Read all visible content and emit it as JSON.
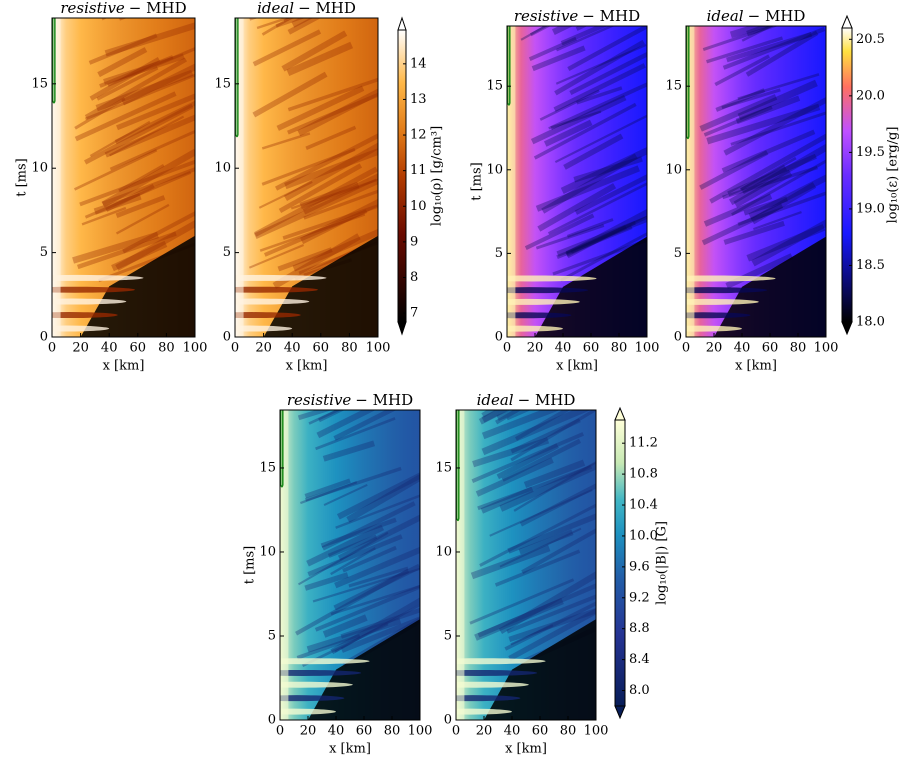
{
  "chart_data": [
    {
      "type": "heatmap",
      "title_italic": "resistive",
      "title": "− MHD",
      "xlabel": "x [km]",
      "ylabel": "t [ms]",
      "xlim": [
        0,
        100
      ],
      "xticks": [
        0,
        20,
        40,
        60,
        80,
        100
      ],
      "ylim": [
        0,
        18.9
      ],
      "yticks": [
        0,
        5,
        10,
        15
      ],
      "colormap": "afmhot",
      "contour_t": 14
    },
    {
      "type": "heatmap",
      "title_italic": "ideal",
      "title": "− MHD",
      "xlabel": "x [km]",
      "xlim": [
        0,
        100
      ],
      "xticks": [
        0,
        20,
        40,
        60,
        80,
        100
      ],
      "ylim": [
        0,
        18.9
      ],
      "yticks": [
        0,
        5,
        10,
        15
      ],
      "colormap": "afmhot",
      "contour_t": 12
    },
    {
      "type": "colorbar",
      "label": "log₁₀(ρ) [g/cm³]",
      "colormap": "afmhot",
      "lim": [
        6.75,
        14.95
      ],
      "ticks": [
        7,
        8,
        9,
        10,
        11,
        12,
        13,
        14
      ]
    },
    {
      "type": "heatmap",
      "title_italic": "resistive",
      "title": "− MHD",
      "xlabel": "x [km]",
      "ylabel": "t [ms]",
      "xlim": [
        0,
        100
      ],
      "xticks": [
        0,
        20,
        40,
        60,
        80,
        100
      ],
      "ylim": [
        0,
        18.6
      ],
      "yticks": [
        0,
        5,
        10,
        15
      ],
      "colormap": "gnuplot2",
      "contour_t": 14
    },
    {
      "type": "heatmap",
      "title_italic": "ideal",
      "title": "− MHD",
      "xlabel": "x [km]",
      "xlim": [
        0,
        100
      ],
      "xticks": [
        0,
        20,
        40,
        60,
        80,
        100
      ],
      "ylim": [
        0,
        18.6
      ],
      "yticks": [
        0,
        5,
        10,
        15
      ],
      "colormap": "gnuplot2",
      "contour_t": 12
    },
    {
      "type": "colorbar",
      "label": "log₁₀(ε) [erg/g]",
      "colormap": "gnuplot2",
      "lim": [
        18,
        20.6
      ],
      "ticks": [
        {
          "value": 18,
          "label": "18.0"
        },
        18.5,
        {
          "value": 19,
          "label": "19.0"
        },
        19.5,
        {
          "value": 20,
          "label": "20.0"
        },
        20.5
      ]
    },
    {
      "type": "heatmap",
      "title_italic": "resistive",
      "title": "− MHD",
      "xlabel": "x [km]",
      "ylabel": "t [ms]",
      "xlim": [
        0,
        100
      ],
      "xticks": [
        0,
        20,
        40,
        60,
        80,
        100
      ],
      "ylim": [
        0,
        18.45
      ],
      "yticks": [
        0,
        5,
        10,
        15
      ],
      "colormap": "YlGnBu_r",
      "contour_t": 14
    },
    {
      "type": "heatmap",
      "title_italic": "ideal",
      "title": "− MHD",
      "xlabel": "x [km]",
      "xlim": [
        0,
        100
      ],
      "xticks": [
        0,
        20,
        40,
        60,
        80,
        100
      ],
      "ylim": [
        0,
        18.45
      ],
      "yticks": [
        0,
        5,
        10,
        15
      ],
      "colormap": "YlGnBu_r",
      "contour_t": 12
    },
    {
      "type": "colorbar",
      "label": "log₁₀(|B|) [G]",
      "colormap": "YlGnBu_r",
      "lim": [
        7.8,
        11.5
      ],
      "ticks": [
        {
          "value": 8,
          "label": "8.0"
        },
        8.4,
        8.8,
        9.2,
        9.6,
        {
          "value": 10,
          "label": "10.0"
        },
        10.4,
        10.8,
        11.2
      ]
    }
  ]
}
